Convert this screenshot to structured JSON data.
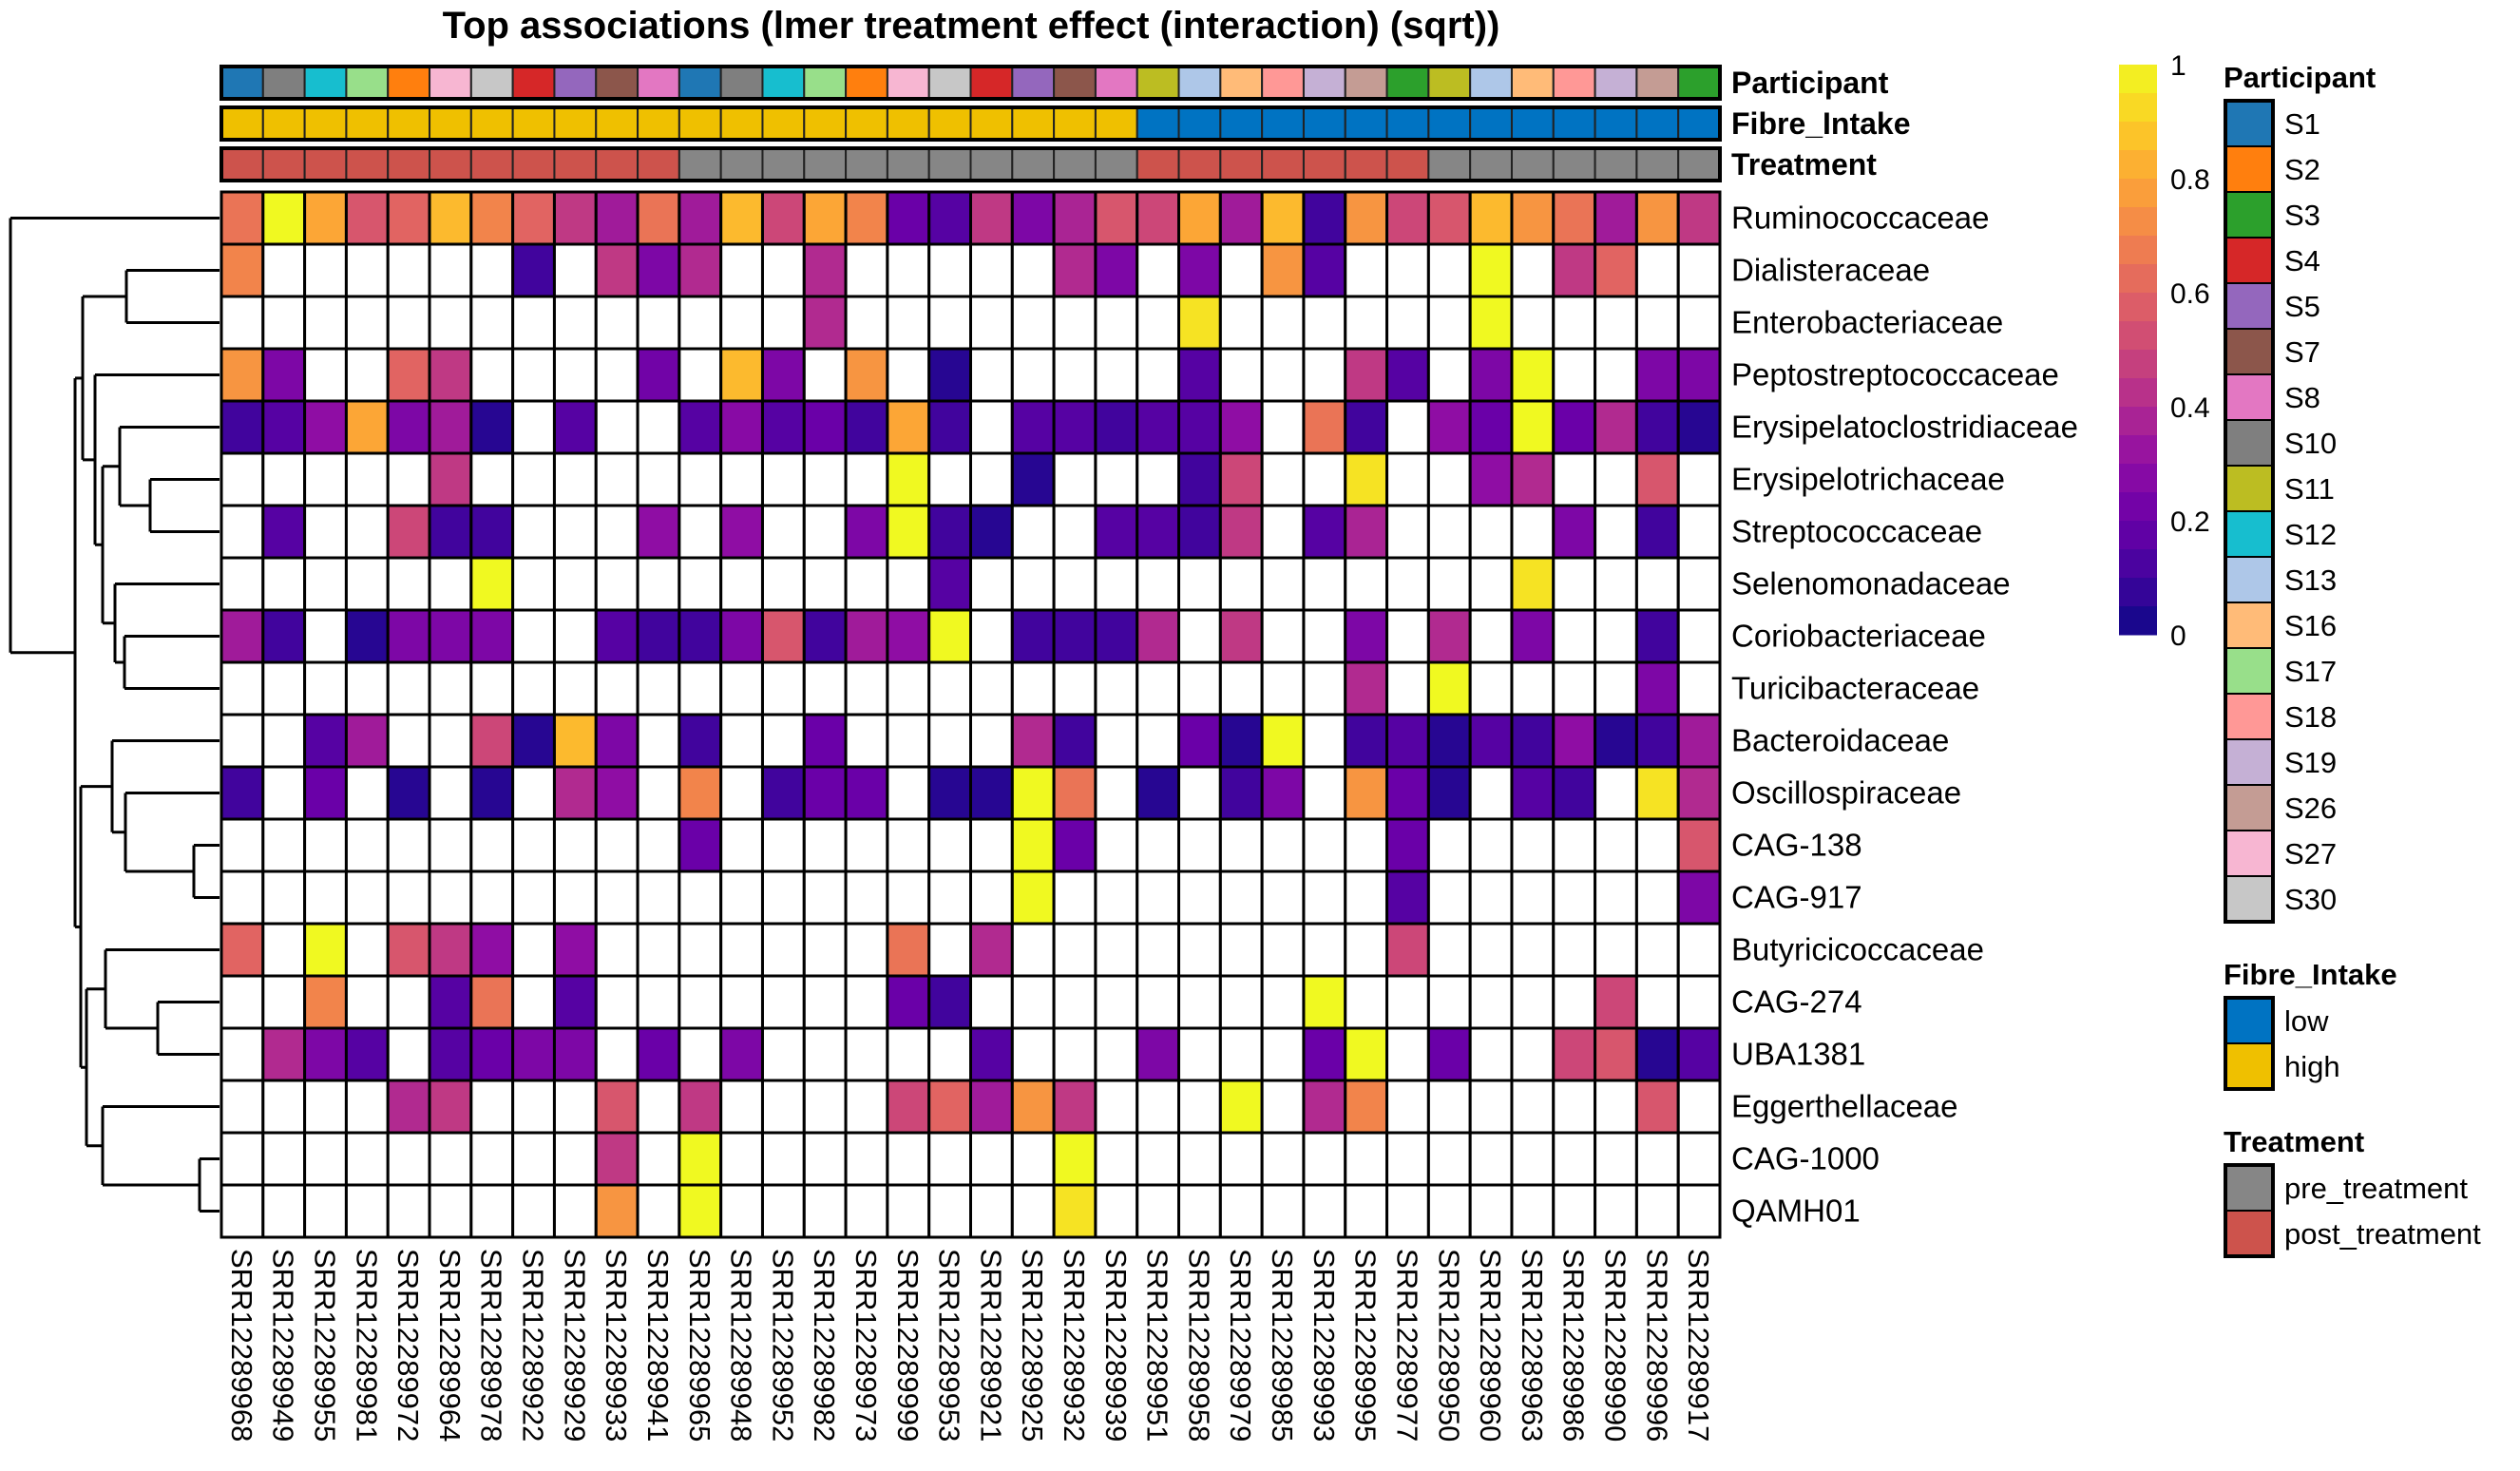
{
  "chart_data": {
    "type": "heatmap",
    "title": "Top associations (lmer treatment effect (interaction) (sqrt))",
    "colorscale": {
      "name": "plasma",
      "range": [
        0,
        1
      ],
      "ticks": [
        "0",
        "0.2",
        "0.4",
        "0.6",
        "0.8",
        "1"
      ],
      "tick_values": [
        0,
        0.2,
        0.4,
        0.6,
        0.8,
        1
      ],
      "missing_color": "#ffffff"
    },
    "rows": [
      "Ruminococcaceae",
      "Dialisteraceae",
      "Enterobacteriaceae",
      "Peptostreptococcaceae",
      "Erysipelatoclostridiaceae",
      "Erysipelotrichaceae",
      "Streptococcaceae",
      "Selenomonadaceae",
      "Coriobacteriaceae",
      "Turicibacteraceae",
      "Bacteroidaceae",
      "Oscillospiraceae",
      "CAG-138",
      "CAG-917",
      "Butyricicoccaceae",
      "CAG-274",
      "UBA1381",
      "Eggerthellaceae",
      "CAG-1000",
      "QAMH01"
    ],
    "columns": [
      "SRR12289968",
      "SRR12289949",
      "SRR12289955",
      "SRR12289981",
      "SRR12289972",
      "SRR12289964",
      "SRR12289978",
      "SRR12289922",
      "SRR12289929",
      "SRR12289933",
      "SRR12289941",
      "SRR12289965",
      "SRR12289948",
      "SRR12289952",
      "SRR12289982",
      "SRR12289973",
      "SRR12289999",
      "SRR12289953",
      "SRR12289921",
      "SRR12289925",
      "SRR12289932",
      "SRR12289939",
      "SRR12289951",
      "SRR12289958",
      "SRR12289979",
      "SRR12289985",
      "SRR12289993",
      "SRR12289995",
      "SRR12289977",
      "SRR12289950",
      "SRR12289960",
      "SRR12289963",
      "SRR12289986",
      "SRR12289990",
      "SRR12289996",
      "SRR12289917"
    ],
    "values": [
      [
        0.65,
        1.0,
        0.8,
        0.55,
        0.6,
        0.85,
        0.7,
        0.6,
        0.45,
        0.35,
        0.65,
        0.35,
        0.85,
        0.5,
        0.8,
        0.7,
        0.2,
        0.15,
        0.45,
        0.25,
        0.38,
        0.55,
        0.5,
        0.8,
        0.35,
        0.85,
        0.1,
        0.75,
        0.5,
        0.55,
        0.85,
        0.75,
        0.65,
        0.35,
        0.75,
        0.45
      ],
      [
        0.7,
        null,
        null,
        null,
        null,
        null,
        null,
        0.1,
        null,
        0.45,
        0.25,
        0.4,
        null,
        null,
        0.4,
        null,
        null,
        null,
        null,
        null,
        0.4,
        0.25,
        null,
        0.25,
        null,
        0.75,
        0.15,
        null,
        null,
        null,
        1.0,
        null,
        0.45,
        0.6,
        null,
        null
      ],
      [
        null,
        null,
        null,
        null,
        null,
        null,
        null,
        null,
        null,
        null,
        null,
        null,
        null,
        null,
        0.4,
        null,
        null,
        null,
        null,
        null,
        null,
        null,
        null,
        0.95,
        null,
        null,
        null,
        null,
        null,
        null,
        1.0,
        null,
        null,
        null,
        null,
        null
      ],
      [
        0.75,
        0.25,
        null,
        null,
        0.6,
        0.45,
        null,
        null,
        null,
        null,
        0.22,
        null,
        0.85,
        0.25,
        null,
        0.75,
        null,
        0.05,
        null,
        null,
        null,
        null,
        null,
        0.15,
        null,
        null,
        null,
        0.45,
        0.15,
        null,
        0.25,
        1.0,
        null,
        null,
        0.25,
        0.25
      ],
      [
        0.1,
        0.15,
        0.3,
        0.8,
        0.25,
        0.35,
        0.05,
        null,
        0.15,
        null,
        null,
        0.15,
        0.28,
        0.15,
        0.2,
        0.1,
        0.8,
        0.1,
        null,
        0.15,
        0.15,
        0.1,
        0.15,
        0.15,
        0.3,
        null,
        0.65,
        0.1,
        null,
        0.3,
        0.2,
        1.0,
        0.2,
        0.4,
        0.1,
        0.05
      ],
      [
        null,
        null,
        null,
        null,
        null,
        0.45,
        null,
        null,
        null,
        null,
        null,
        null,
        null,
        null,
        null,
        null,
        1.0,
        null,
        null,
        0.05,
        null,
        null,
        null,
        0.1,
        0.5,
        null,
        null,
        0.95,
        null,
        null,
        0.3,
        0.4,
        null,
        null,
        0.55,
        null
      ],
      [
        null,
        0.15,
        null,
        null,
        0.5,
        0.1,
        0.1,
        null,
        null,
        null,
        0.3,
        null,
        0.3,
        null,
        null,
        0.25,
        1.0,
        0.1,
        0.05,
        null,
        null,
        0.15,
        0.15,
        0.1,
        0.45,
        null,
        0.15,
        0.38,
        null,
        null,
        null,
        null,
        0.25,
        null,
        0.1,
        null
      ],
      [
        null,
        null,
        null,
        null,
        null,
        null,
        1.0,
        null,
        null,
        null,
        null,
        null,
        null,
        null,
        null,
        null,
        null,
        0.15,
        null,
        null,
        null,
        null,
        null,
        null,
        null,
        null,
        null,
        null,
        null,
        null,
        null,
        0.95,
        null,
        null,
        null,
        null
      ],
      [
        0.35,
        0.1,
        null,
        0.05,
        0.25,
        0.25,
        0.25,
        null,
        null,
        0.15,
        0.1,
        0.1,
        0.25,
        0.55,
        0.1,
        0.35,
        0.3,
        1.0,
        null,
        0.1,
        0.1,
        0.1,
        0.4,
        null,
        0.45,
        null,
        null,
        0.25,
        null,
        0.4,
        null,
        0.25,
        null,
        null,
        0.1,
        null
      ],
      [
        null,
        null,
        null,
        null,
        null,
        null,
        null,
        null,
        null,
        null,
        null,
        null,
        null,
        null,
        null,
        null,
        null,
        null,
        null,
        null,
        null,
        null,
        null,
        null,
        null,
        null,
        null,
        0.4,
        null,
        1.0,
        null,
        null,
        null,
        null,
        0.25,
        null
      ],
      [
        null,
        null,
        0.15,
        0.35,
        null,
        null,
        0.5,
        0.05,
        0.85,
        0.25,
        null,
        0.1,
        null,
        null,
        0.2,
        null,
        null,
        null,
        null,
        0.4,
        0.1,
        null,
        null,
        0.2,
        0.05,
        1.0,
        null,
        0.1,
        0.15,
        0.05,
        0.15,
        0.1,
        0.3,
        0.05,
        0.1,
        0.35
      ],
      [
        0.1,
        null,
        0.2,
        null,
        0.05,
        null,
        0.05,
        null,
        0.4,
        0.3,
        null,
        0.7,
        null,
        0.1,
        0.2,
        0.2,
        null,
        0.05,
        0.05,
        1.0,
        0.65,
        null,
        0.05,
        null,
        0.1,
        0.25,
        null,
        0.75,
        0.2,
        0.05,
        null,
        0.15,
        0.1,
        null,
        0.95,
        0.4
      ],
      [
        null,
        null,
        null,
        null,
        null,
        null,
        null,
        null,
        null,
        null,
        null,
        0.2,
        null,
        null,
        null,
        null,
        null,
        null,
        null,
        1.0,
        0.2,
        null,
        null,
        null,
        null,
        null,
        null,
        null,
        0.2,
        null,
        null,
        null,
        null,
        null,
        null,
        0.55
      ],
      [
        null,
        null,
        null,
        null,
        null,
        null,
        null,
        null,
        null,
        null,
        null,
        null,
        null,
        null,
        null,
        null,
        null,
        null,
        null,
        1.0,
        null,
        null,
        null,
        null,
        null,
        null,
        null,
        null,
        0.15,
        null,
        null,
        null,
        null,
        null,
        null,
        0.25
      ],
      [
        0.6,
        null,
        1.0,
        null,
        0.55,
        0.45,
        0.3,
        null,
        0.3,
        null,
        null,
        null,
        null,
        null,
        null,
        null,
        0.65,
        null,
        0.4,
        null,
        null,
        null,
        null,
        null,
        null,
        null,
        null,
        null,
        0.5,
        null,
        null,
        null,
        null,
        null,
        null,
        null
      ],
      [
        null,
        null,
        0.7,
        null,
        null,
        0.15,
        0.65,
        null,
        0.15,
        null,
        null,
        null,
        null,
        null,
        null,
        null,
        0.2,
        0.1,
        null,
        null,
        null,
        null,
        null,
        null,
        null,
        null,
        1.0,
        null,
        null,
        null,
        null,
        null,
        null,
        0.5,
        null,
        null
      ],
      [
        null,
        0.4,
        0.25,
        0.15,
        null,
        0.15,
        0.2,
        0.25,
        0.25,
        null,
        0.2,
        null,
        0.25,
        null,
        null,
        null,
        null,
        null,
        0.15,
        null,
        null,
        null,
        0.25,
        null,
        null,
        null,
        0.2,
        1.0,
        null,
        0.2,
        null,
        null,
        0.5,
        0.55,
        0.05,
        0.15
      ],
      [
        null,
        null,
        null,
        null,
        0.4,
        0.45,
        null,
        null,
        null,
        0.55,
        null,
        0.45,
        null,
        null,
        null,
        null,
        0.5,
        0.6,
        0.35,
        0.75,
        0.45,
        null,
        null,
        null,
        1.0,
        null,
        0.4,
        0.7,
        null,
        null,
        null,
        null,
        null,
        null,
        0.55,
        null
      ],
      [
        null,
        null,
        null,
        null,
        null,
        null,
        null,
        null,
        null,
        0.45,
        null,
        1.0,
        null,
        null,
        null,
        null,
        null,
        null,
        null,
        null,
        1.0,
        null,
        null,
        null,
        null,
        null,
        null,
        null,
        null,
        null,
        null,
        null,
        null,
        null,
        null,
        null
      ],
      [
        null,
        null,
        null,
        null,
        null,
        null,
        null,
        null,
        null,
        0.75,
        null,
        1.0,
        null,
        null,
        null,
        null,
        null,
        null,
        null,
        null,
        0.95,
        null,
        null,
        null,
        null,
        null,
        null,
        null,
        null,
        null,
        null,
        null,
        null,
        null,
        null,
        null
      ]
    ],
    "column_annotations": [
      {
        "name": "Participant",
        "values": [
          "S1",
          "S10",
          "S12",
          "S17",
          "S2",
          "S27",
          "S30",
          "S4",
          "S5",
          "S7",
          "S8",
          "S1",
          "S10",
          "S12",
          "S17",
          "S2",
          "S27",
          "S30",
          "S4",
          "S5",
          "S7",
          "S8",
          "S11",
          "S13",
          "S16",
          "S18",
          "S19",
          "S26",
          "S3",
          "S11",
          "S13",
          "S16",
          "S18",
          "S19",
          "S26",
          "S3"
        ]
      },
      {
        "name": "Fibre_Intake",
        "values": [
          "high",
          "high",
          "high",
          "high",
          "high",
          "high",
          "high",
          "high",
          "high",
          "high",
          "high",
          "high",
          "high",
          "high",
          "high",
          "high",
          "high",
          "high",
          "high",
          "high",
          "high",
          "high",
          "low",
          "low",
          "low",
          "low",
          "low",
          "low",
          "low",
          "low",
          "low",
          "low",
          "low",
          "low",
          "low",
          "low"
        ]
      },
      {
        "name": "Treatment",
        "values": [
          "post_treatment",
          "post_treatment",
          "post_treatment",
          "post_treatment",
          "post_treatment",
          "post_treatment",
          "post_treatment",
          "post_treatment",
          "post_treatment",
          "post_treatment",
          "post_treatment",
          "pre_treatment",
          "pre_treatment",
          "pre_treatment",
          "pre_treatment",
          "pre_treatment",
          "pre_treatment",
          "pre_treatment",
          "pre_treatment",
          "pre_treatment",
          "pre_treatment",
          "pre_treatment",
          "post_treatment",
          "post_treatment",
          "post_treatment",
          "post_treatment",
          "post_treatment",
          "post_treatment",
          "post_treatment",
          "pre_treatment",
          "pre_treatment",
          "pre_treatment",
          "pre_treatment",
          "pre_treatment",
          "pre_treatment",
          "pre_treatment"
        ]
      }
    ],
    "legends": [
      {
        "title": "Participant",
        "items": [
          {
            "label": "S1",
            "color": "#1f77b4"
          },
          {
            "label": "S2",
            "color": "#ff7f0e"
          },
          {
            "label": "S3",
            "color": "#2ca02c"
          },
          {
            "label": "S4",
            "color": "#d62728"
          },
          {
            "label": "S5",
            "color": "#9467bd"
          },
          {
            "label": "S7",
            "color": "#8c564b"
          },
          {
            "label": "S8",
            "color": "#e377c2"
          },
          {
            "label": "S10",
            "color": "#7f7f7f"
          },
          {
            "label": "S11",
            "color": "#bcbd22"
          },
          {
            "label": "S12",
            "color": "#17becf"
          },
          {
            "label": "S13",
            "color": "#aec7e8"
          },
          {
            "label": "S16",
            "color": "#ffbb78"
          },
          {
            "label": "S17",
            "color": "#98df8a"
          },
          {
            "label": "S18",
            "color": "#ff9896"
          },
          {
            "label": "S19",
            "color": "#c5b0d5"
          },
          {
            "label": "S26",
            "color": "#c49c94"
          },
          {
            "label": "S27",
            "color": "#f7b6d2"
          },
          {
            "label": "S30",
            "color": "#c7c7c7"
          }
        ]
      },
      {
        "title": "Fibre_Intake",
        "items": [
          {
            "label": "low",
            "color": "#0073c2"
          },
          {
            "label": "high",
            "color": "#efc000"
          }
        ]
      },
      {
        "title": "Treatment",
        "items": [
          {
            "label": "pre_treatment",
            "color": "#868686"
          },
          {
            "label": "post_treatment",
            "color": "#cd534c"
          }
        ]
      }
    ],
    "dendrogram": {
      "side": "left",
      "leaf_order": [
        "Ruminococcaceae",
        "Dialisteraceae",
        "Enterobacteriaceae",
        "Peptostreptococcaceae",
        "Erysipelatoclostridiaceae",
        "Erysipelotrichaceae",
        "Streptococcaceae",
        "Selenomonadaceae",
        "Coriobacteriaceae",
        "Turicibacteraceae",
        "Bacteroidaceae",
        "Oscillospiraceae",
        "CAG-138",
        "CAG-917",
        "Butyricicoccaceae",
        "CAG-274",
        "UBA1381",
        "Eggerthellaceae",
        "CAG-1000",
        "QAMH01"
      ]
    }
  }
}
